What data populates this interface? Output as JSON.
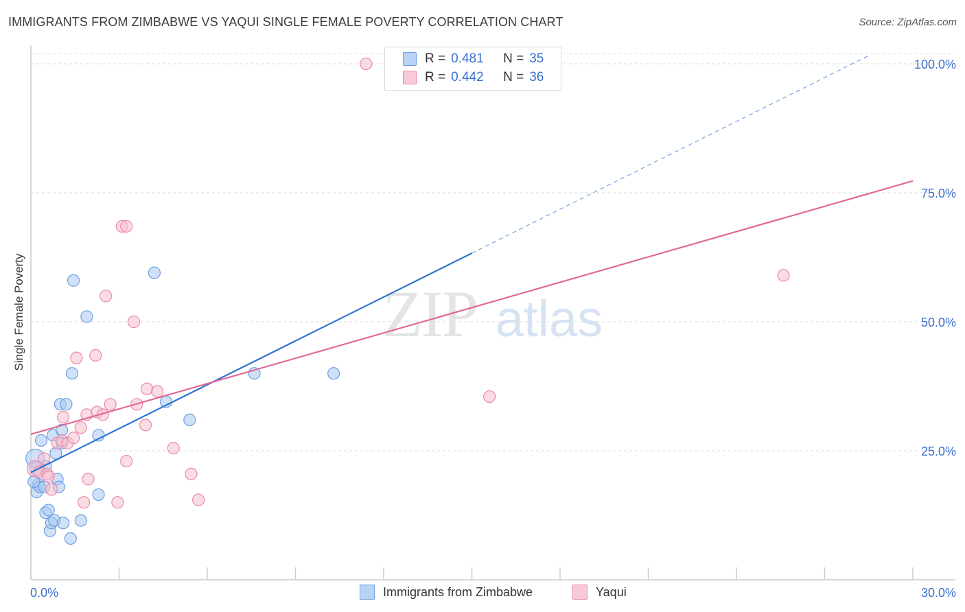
{
  "title": "IMMIGRANTS FROM ZIMBABWE VS YAQUI SINGLE FEMALE POVERTY CORRELATION CHART",
  "source": "Source: ZipAtlas.com",
  "watermark": {
    "zip": "ZIP",
    "atlas": "atlas"
  },
  "legend": {
    "rows": [
      {
        "r_label": "R =",
        "r_value": "0.481",
        "n_label": "N =",
        "n_value": "35"
      },
      {
        "r_label": "R =",
        "r_value": "0.442",
        "n_label": "N =",
        "n_value": "36"
      }
    ]
  },
  "bottom_legend": [
    "Immigrants from Zimbabwe",
    "Yaqui"
  ],
  "colors": {
    "blue_fill": "#a9c8f0",
    "blue_stroke": "#6a9fe0",
    "blue_line": "#2f74d0",
    "pink_fill": "#f6bfd0",
    "pink_stroke": "#e98aa8",
    "pink_line": "#e06a93",
    "grid": "#d9d9d9",
    "axis_text": "#3a6fd0"
  },
  "chart_data": {
    "type": "scatter",
    "title": "IMMIGRANTS FROM ZIMBABWE VS YAQUI SINGLE FEMALE POVERTY CORRELATION CHART",
    "xlabel": "",
    "ylabel": "Single Female Poverty",
    "xlim": [
      0,
      30
    ],
    "ylim": [
      0,
      102
    ],
    "x_tick_labels": [
      "0.0%",
      "30.0%"
    ],
    "y_ticks": [
      25,
      50,
      75,
      100
    ],
    "y_tick_labels": [
      "25.0%",
      "50.0%",
      "75.0%",
      "100.0%"
    ],
    "grid": true,
    "series": [
      {
        "name": "Immigrants from Zimbabwe",
        "r": 0.481,
        "n": 35,
        "trend": {
          "x0": 0,
          "y0": 20.8,
          "x1": 15,
          "y1": 63.3,
          "dashed_to_x": 28.5,
          "dashed_to_y": 101.6
        },
        "points": [
          [
            0.15,
            23.5,
            16
          ],
          [
            0.2,
            21.5,
            12
          ],
          [
            0.25,
            18.5,
            10
          ],
          [
            0.2,
            17.0,
            10
          ],
          [
            0.3,
            18.0,
            10
          ],
          [
            0.35,
            27.0,
            10
          ],
          [
            0.45,
            18.0,
            10
          ],
          [
            0.5,
            22.0,
            10
          ],
          [
            0.5,
            13.0,
            10
          ],
          [
            0.6,
            13.5,
            10
          ],
          [
            0.65,
            9.5,
            10
          ],
          [
            0.7,
            11.0,
            10
          ],
          [
            0.75,
            28.0,
            10
          ],
          [
            0.8,
            11.5,
            10
          ],
          [
            0.85,
            24.5,
            10
          ],
          [
            0.9,
            19.5,
            10
          ],
          [
            0.95,
            18.0,
            10
          ],
          [
            1.0,
            34.0,
            10
          ],
          [
            1.05,
            29.0,
            10
          ],
          [
            1.05,
            26.5,
            10
          ],
          [
            1.1,
            11.0,
            10
          ],
          [
            1.2,
            34.0,
            10
          ],
          [
            1.35,
            8.0,
            10
          ],
          [
            1.4,
            40.0,
            10
          ],
          [
            1.45,
            58.0,
            10
          ],
          [
            1.7,
            11.5,
            10
          ],
          [
            1.9,
            51.0,
            10
          ],
          [
            2.3,
            16.5,
            10
          ],
          [
            2.3,
            28.0,
            10
          ],
          [
            4.2,
            59.5,
            10
          ],
          [
            4.6,
            34.5,
            10
          ],
          [
            5.4,
            31.0,
            10
          ],
          [
            7.6,
            40.0,
            10
          ],
          [
            10.3,
            40.0,
            10
          ],
          [
            0.1,
            19.0,
            10
          ]
        ]
      },
      {
        "name": "Yaqui",
        "r": 0.442,
        "n": 36,
        "trend": {
          "x0": 0,
          "y0": 28.2,
          "x1": 30,
          "y1": 77.3
        },
        "points": [
          [
            0.15,
            21.5,
            14
          ],
          [
            0.3,
            21.0,
            10
          ],
          [
            0.45,
            23.5,
            10
          ],
          [
            0.55,
            20.5,
            10
          ],
          [
            0.6,
            20.0,
            10
          ],
          [
            0.7,
            17.5,
            10
          ],
          [
            0.9,
            26.5,
            10
          ],
          [
            1.05,
            27.0,
            10
          ],
          [
            1.1,
            31.5,
            10
          ],
          [
            1.25,
            26.5,
            10
          ],
          [
            1.45,
            27.5,
            10
          ],
          [
            1.55,
            43.0,
            10
          ],
          [
            1.7,
            29.5,
            10
          ],
          [
            1.8,
            15.0,
            10
          ],
          [
            1.9,
            32.0,
            10
          ],
          [
            1.95,
            19.5,
            10
          ],
          [
            2.2,
            43.5,
            10
          ],
          [
            2.25,
            32.5,
            10
          ],
          [
            2.45,
            32.0,
            10
          ],
          [
            2.55,
            55.0,
            10
          ],
          [
            2.7,
            34.0,
            10
          ],
          [
            2.95,
            15.0,
            10
          ],
          [
            3.1,
            68.5,
            10
          ],
          [
            3.25,
            68.5,
            10
          ],
          [
            3.25,
            23.0,
            10
          ],
          [
            3.5,
            50.0,
            10
          ],
          [
            3.6,
            34.0,
            10
          ],
          [
            3.9,
            30.0,
            10
          ],
          [
            3.95,
            37.0,
            10
          ],
          [
            4.3,
            36.5,
            10
          ],
          [
            4.85,
            25.5,
            10
          ],
          [
            5.45,
            20.5,
            10
          ],
          [
            5.7,
            15.5,
            10
          ],
          [
            11.4,
            100.0,
            10
          ],
          [
            15.6,
            35.5,
            10
          ],
          [
            25.6,
            59.0,
            10
          ]
        ]
      }
    ]
  }
}
